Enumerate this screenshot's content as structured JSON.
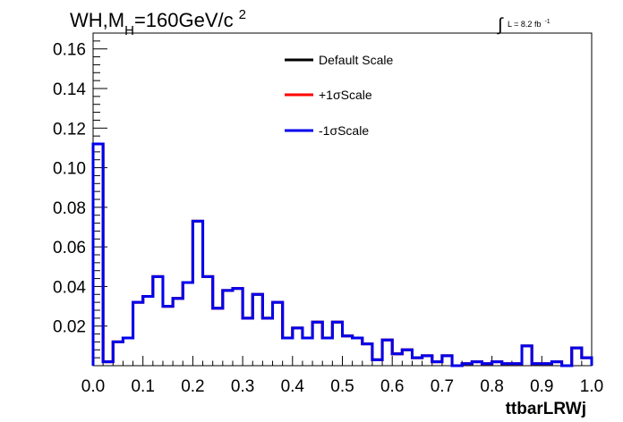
{
  "chart_data": {
    "type": "histogram",
    "title": {
      "main": "WH,M",
      "sub": "H",
      "rest": "=160GeV/c",
      "sup": "2"
    },
    "lumi": {
      "prefix": "∫",
      "text": "L = 8.2 fb",
      "sup": "-1"
    },
    "xlabel": "ttbarLRWj",
    "ylabel": "",
    "xlim": [
      0.0,
      1.0
    ],
    "ylim": [
      0.0,
      0.168
    ],
    "x_ticks": [
      0.0,
      0.1,
      0.2,
      0.3,
      0.4,
      0.5,
      0.6,
      0.7,
      0.8,
      0.9,
      1.0
    ],
    "x_tick_labels": [
      "0.0",
      "0.1",
      "0.2",
      "0.3",
      "0.4",
      "0.5",
      "0.6",
      "0.7",
      "0.8",
      "0.9",
      "1.0"
    ],
    "y_ticks": [
      0.02,
      0.04,
      0.06,
      0.08,
      0.1,
      0.12,
      0.14,
      0.16
    ],
    "y_tick_labels": [
      "0.02",
      "0.04",
      "0.06",
      "0.08",
      "0.10",
      "0.12",
      "0.14",
      "0.16"
    ],
    "grid": false,
    "legend_position": "top-center",
    "bin_edges": [
      0.0,
      0.02,
      0.04,
      0.06,
      0.08,
      0.1,
      0.12,
      0.14,
      0.16,
      0.18,
      0.2,
      0.22,
      0.24,
      0.26,
      0.28,
      0.3,
      0.32,
      0.34,
      0.36,
      0.38,
      0.4,
      0.42,
      0.44,
      0.46,
      0.48,
      0.5,
      0.52,
      0.54,
      0.56,
      0.58,
      0.6,
      0.62,
      0.64,
      0.66,
      0.68,
      0.7,
      0.72,
      0.74,
      0.76,
      0.78,
      0.8,
      0.82,
      0.84,
      0.86,
      0.88,
      0.9,
      0.92,
      0.94,
      0.96,
      0.98,
      1.0
    ],
    "series": [
      {
        "name": "Default Scale",
        "color": "#000000",
        "values": [
          0.112,
          0.002,
          0.012,
          0.014,
          0.032,
          0.035,
          0.045,
          0.03,
          0.034,
          0.042,
          0.073,
          0.045,
          0.029,
          0.038,
          0.039,
          0.024,
          0.036,
          0.024,
          0.032,
          0.014,
          0.019,
          0.014,
          0.022,
          0.014,
          0.022,
          0.015,
          0.014,
          0.011,
          0.003,
          0.013,
          0.006,
          0.008,
          0.004,
          0.005,
          0.002,
          0.005,
          0.0,
          0.001,
          0.002,
          0.001,
          0.002,
          0.001,
          0.001,
          0.01,
          0.001,
          0.001,
          0.002,
          0.0,
          0.009,
          0.004
        ]
      },
      {
        "name": "+1σScale",
        "color": "#ff0000",
        "values": [
          0.112,
          0.002,
          0.012,
          0.014,
          0.032,
          0.035,
          0.045,
          0.03,
          0.034,
          0.042,
          0.073,
          0.045,
          0.029,
          0.038,
          0.039,
          0.024,
          0.036,
          0.024,
          0.032,
          0.014,
          0.019,
          0.014,
          0.022,
          0.014,
          0.022,
          0.015,
          0.014,
          0.011,
          0.003,
          0.013,
          0.006,
          0.008,
          0.004,
          0.005,
          0.002,
          0.005,
          0.0,
          0.001,
          0.002,
          0.001,
          0.002,
          0.001,
          0.001,
          0.01,
          0.001,
          0.001,
          0.002,
          0.0,
          0.009,
          0.004
        ]
      },
      {
        "name": "-1σScale",
        "color": "#0000ee",
        "values": [
          0.112,
          0.002,
          0.012,
          0.014,
          0.032,
          0.035,
          0.045,
          0.03,
          0.034,
          0.042,
          0.073,
          0.045,
          0.029,
          0.038,
          0.039,
          0.024,
          0.036,
          0.024,
          0.032,
          0.014,
          0.019,
          0.014,
          0.022,
          0.014,
          0.022,
          0.015,
          0.014,
          0.011,
          0.003,
          0.013,
          0.006,
          0.008,
          0.004,
          0.005,
          0.002,
          0.005,
          0.0,
          0.001,
          0.002,
          0.001,
          0.002,
          0.001,
          0.001,
          0.01,
          0.001,
          0.001,
          0.002,
          0.0,
          0.009,
          0.004
        ]
      }
    ]
  }
}
